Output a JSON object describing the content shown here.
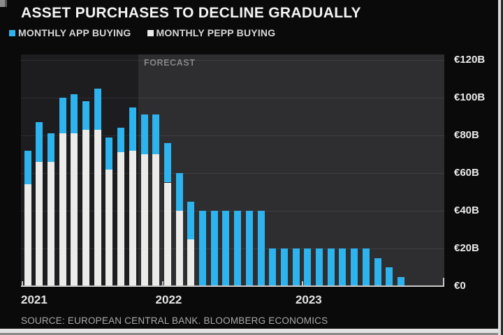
{
  "title": "ASSET PURCHASES TO DECLINE GRADUALLY",
  "legend": [
    {
      "label": "MONTHLY APP BUYING",
      "color": "#2db3ee"
    },
    {
      "label": "MONTHLY PEPP BUYING",
      "color": "#ebebe9"
    }
  ],
  "forecast_label": "FORECAST",
  "source": "SOURCE: EUROPEAN CENTRAL BANK. BLOOMBERG ECONOMICS",
  "colors": {
    "app_blue": "#2db3ee",
    "pepp_white": "#ebebe9",
    "canvas_bg": "#0a0a0b",
    "history_bg": "#1d1d20",
    "forecast_bg": "#2e2e31",
    "axis": "#c9c9c9"
  },
  "y_axis": {
    "unit": "€B",
    "tick_values": [
      120,
      100,
      80,
      60,
      40,
      20,
      0
    ],
    "tick_labels": [
      "€120B",
      "€100B",
      "€80B",
      "€60B",
      "€40B",
      "€20B",
      "€0"
    ]
  },
  "x_axis": {
    "year_labels": [
      "2021",
      "2022",
      "2023"
    ]
  },
  "chart_data": {
    "type": "bar",
    "stacked": true,
    "title": "ASSET PURCHASES TO DECLINE GRADUALLY",
    "ylabel": "€B per month",
    "ylim": [
      0,
      120
    ],
    "grid": true,
    "legend_position": "top-left",
    "categories": [
      "2021-01",
      "2021-02",
      "2021-03",
      "2021-04",
      "2021-05",
      "2021-06",
      "2021-07",
      "2021-08",
      "2021-09",
      "2021-10",
      "2021-11",
      "2021-12",
      "2022-01",
      "2022-02",
      "2022-03",
      "2022-04",
      "2022-05",
      "2022-06",
      "2022-07",
      "2022-08",
      "2022-09",
      "2022-10",
      "2022-11",
      "2022-12",
      "2023-01",
      "2023-02",
      "2023-03",
      "2023-04",
      "2023-05",
      "2023-06",
      "2023-07",
      "2023-08",
      "2023-09"
    ],
    "series": [
      {
        "name": "MONTHLY PEPP BUYING",
        "color": "#ebebe9",
        "values": [
          54,
          66,
          66,
          81,
          81,
          83,
          83,
          62,
          71,
          72,
          70,
          70,
          55,
          40,
          25,
          0,
          0,
          0,
          0,
          0,
          0,
          0,
          0,
          0,
          0,
          0,
          0,
          0,
          0,
          0,
          0,
          0,
          0
        ]
      },
      {
        "name": "MONTHLY APP BUYING",
        "color": "#2db3ee",
        "values": [
          18,
          21,
          15,
          19,
          21,
          15,
          22,
          17,
          13,
          23,
          21,
          21,
          21,
          20,
          20,
          40,
          40,
          40,
          40,
          40,
          40,
          20,
          20,
          20,
          20,
          20,
          20,
          20,
          20,
          20,
          15,
          10,
          5
        ]
      }
    ],
    "forecast_start_category": "2021-11",
    "annotations": [
      "FORECAST"
    ]
  }
}
